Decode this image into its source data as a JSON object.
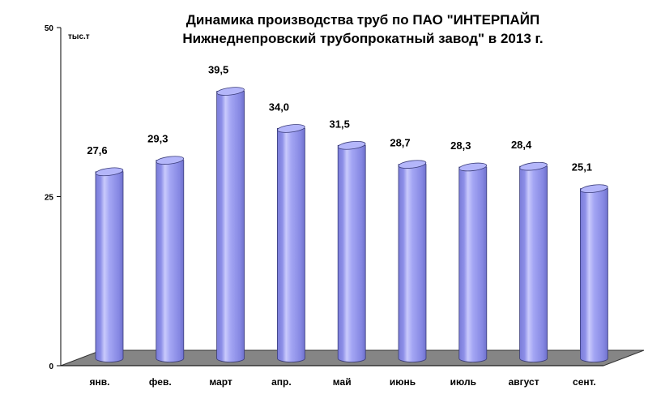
{
  "chart_data": {
    "type": "bar",
    "title": "Динамика производства труб по ПАО \"ИНТЕРПАЙП",
    "subtitle": "Нижнеднепровский трубопрокатный завод\" в 2013 г.",
    "ylabel": "тыс.т",
    "xlabel": "",
    "categories": [
      "янв.",
      "фев.",
      "март",
      "апр.",
      "май",
      "июнь",
      "июль",
      "август",
      "сент."
    ],
    "values": [
      27.6,
      29.3,
      39.5,
      34.0,
      31.5,
      28.7,
      28.3,
      28.4,
      25.1
    ],
    "value_labels": [
      "27,6",
      "29,3",
      "39,5",
      "34,0",
      "31,5",
      "28,7",
      "28,3",
      "28,4",
      "25,1"
    ],
    "ylim": [
      0,
      50
    ],
    "yticks": [
      "0",
      "25",
      "50"
    ],
    "grid": false,
    "legend": "none",
    "bar_color": "#9a9cf2",
    "floor_color": "#858585"
  }
}
